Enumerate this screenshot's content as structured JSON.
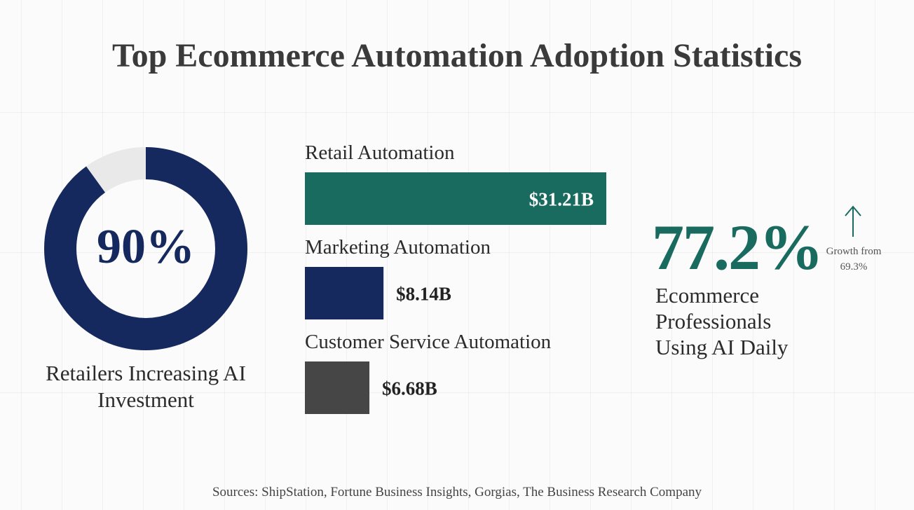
{
  "title": "Top Ecommerce Automation Adoption Statistics",
  "chart_data": [
    {
      "type": "donut",
      "value": 90,
      "value_label": "90%",
      "label": "Retailers Increasing AI Investment",
      "color": "#15295e",
      "track_color": "#e9e9e9"
    },
    {
      "type": "bar",
      "orientation": "horizontal",
      "categories": [
        "Retail Automation",
        "Marketing Automation",
        "Customer Service Automation"
      ],
      "values": [
        31.21,
        8.14,
        6.68
      ],
      "value_labels": [
        "$31.21B",
        "$8.14B",
        "$6.68B"
      ],
      "colors": [
        "#1a6b5f",
        "#15295e",
        "#464646"
      ]
    },
    {
      "type": "stat",
      "text": "77.2%",
      "label": "Ecommerce Professionals Using AI Daily",
      "note": "Growth from 69.3%",
      "color": "#1a6b5f"
    }
  ],
  "sources": "Sources: ShipStation, Fortune Business Insights, Gorgias, The Business Research Company"
}
